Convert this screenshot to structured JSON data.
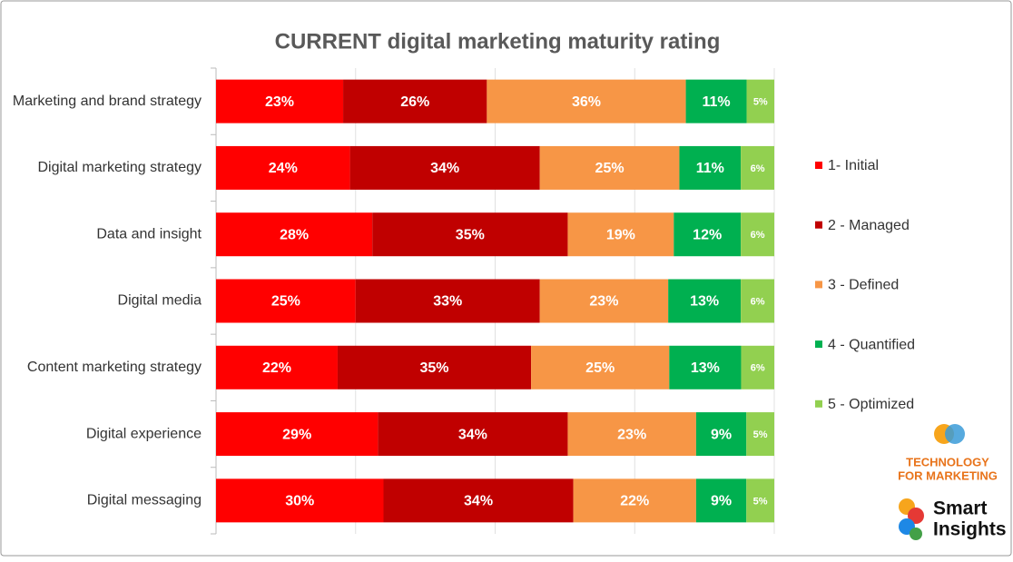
{
  "chart_data": {
    "type": "bar",
    "orientation": "horizontal",
    "stacking": "percent",
    "title": "CURRENT digital marketing maturity rating",
    "categories": [
      "Marketing and brand strategy",
      "Digital marketing strategy",
      "Data and insight",
      "Digital media",
      "Content marketing strategy",
      "Digital experience",
      "Digital messaging"
    ],
    "series": [
      {
        "name": "1- Initial",
        "color": "#ff0000",
        "values": [
          23,
          24,
          28,
          25,
          22,
          29,
          30
        ],
        "value_labels": [
          "23%",
          "24%",
          "28%",
          "25%",
          "22%",
          "29%",
          "30%"
        ]
      },
      {
        "name": "2 - Managed",
        "color": "#c00000",
        "values": [
          26,
          34,
          35,
          33,
          35,
          34,
          34
        ],
        "value_labels": [
          "26%",
          "34%",
          "35%",
          "33%",
          "35%",
          "34%",
          "34%"
        ]
      },
      {
        "name": "3 - Defined",
        "color": "#f79646",
        "values": [
          36,
          25,
          19,
          23,
          25,
          23,
          22
        ],
        "value_labels": [
          "36%",
          "25%",
          "19%",
          "23%",
          "25%",
          "23%",
          "22%"
        ]
      },
      {
        "name": "4 - Quantified",
        "color": "#00b050",
        "values": [
          11,
          11,
          12,
          13,
          13,
          9,
          9
        ],
        "value_labels": [
          "11%",
          "11%",
          "12%",
          "13%",
          "13%",
          "9%",
          "9%"
        ]
      },
      {
        "name": "5 - Optimized",
        "color": "#92d050",
        "values": [
          5,
          6,
          6,
          6,
          6,
          5,
          5
        ],
        "value_labels": [
          "5%",
          "6%",
          "6%",
          "6%",
          "6%",
          "5%",
          "5%"
        ]
      }
    ],
    "legend": "right"
  },
  "logos": {
    "technology_for_marketing": [
      "TECHNOLOGY",
      "FOR MARKETING"
    ],
    "smart_insights": [
      "Smart",
      "Insights"
    ]
  }
}
